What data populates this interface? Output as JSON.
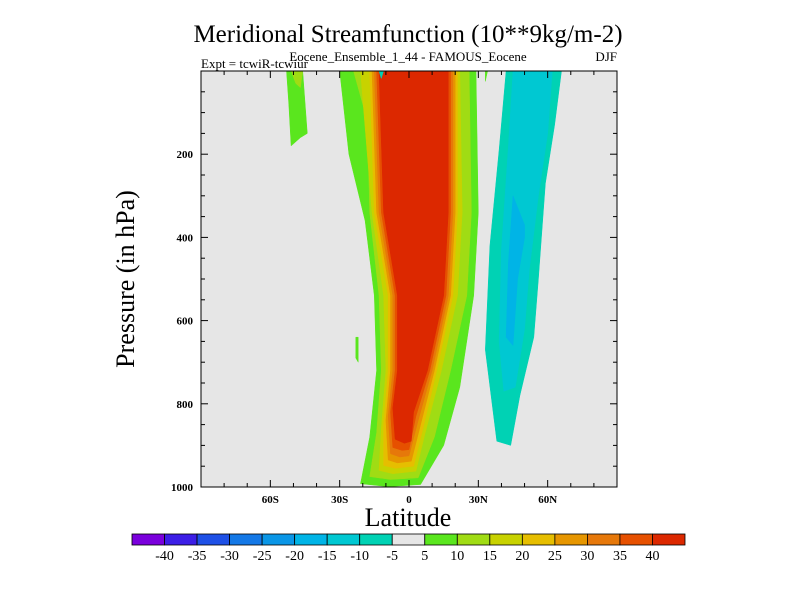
{
  "title": "Meridional Streamfunction (10**9kg/m-2)",
  "subtitle": "Eocene_Ensemble_1_44 - FAMOUS_Eocene",
  "expt_label": "Expt = tcwiR-tcwiur",
  "season": "DJF",
  "chart_data": {
    "type": "heatmap",
    "title": "Meridional Streamfunction (10**9kg/m-2)",
    "subtitle": "Eocene_Ensemble_1_44 - FAMOUS_Eocene",
    "season": "DJF",
    "xlabel": "Latitude",
    "ylabel": "Pressure (in hPa)",
    "xlim": [
      -90,
      90
    ],
    "ylim": [
      1000,
      0
    ],
    "x_ticks": [
      {
        "value": -60,
        "label": "60S"
      },
      {
        "value": -30,
        "label": "30S"
      },
      {
        "value": 0,
        "label": "0"
      },
      {
        "value": 30,
        "label": "30N"
      },
      {
        "value": 60,
        "label": "60N"
      }
    ],
    "y_ticks": [
      {
        "value": 200,
        "label": "200"
      },
      {
        "value": 400,
        "label": "400"
      },
      {
        "value": 600,
        "label": "600"
      },
      {
        "value": 800,
        "label": "800"
      },
      {
        "value": 1000,
        "label": "1000"
      }
    ],
    "background_color": "#e6e6e6",
    "contour_levels": [
      -40,
      -35,
      -30,
      -25,
      -20,
      -15,
      -10,
      -5,
      5,
      10,
      15,
      20,
      25,
      30,
      35,
      40
    ],
    "colorbar_labels": [
      "-40",
      "-35",
      "-30",
      "-25",
      "-20",
      "-15",
      "-10",
      "-5",
      "5",
      "10",
      "15",
      "20",
      "25",
      "30",
      "35",
      "40"
    ],
    "colorbar_colors": [
      "#7a00dc",
      "#3c1ee6",
      "#1e50e6",
      "#1478e6",
      "#0a96e6",
      "#00b4e6",
      "#00c8d2",
      "#00d2b4",
      "#e6e6e6",
      "#5ae61e",
      "#a0dc14",
      "#c8d200",
      "#e6be00",
      "#e69600",
      "#e6780a",
      "#e65000",
      "#dc2800"
    ],
    "regions": [
      {
        "level": "5",
        "color": "#5ae61e",
        "points": [
          [
            -21,
            992
          ],
          [
            -9,
            999
          ],
          [
            5,
            994
          ],
          [
            15,
            900
          ],
          [
            22,
            760
          ],
          [
            28,
            540
          ],
          [
            30,
            340
          ],
          [
            29,
            0
          ],
          [
            -25,
            0
          ],
          [
            -30,
            0
          ],
          [
            -26,
            200
          ],
          [
            -19,
            360
          ],
          [
            -15,
            540
          ],
          [
            -14,
            720
          ],
          [
            -17,
            880
          ]
        ]
      },
      {
        "level": "5",
        "color": "#5ae61e",
        "points": [
          [
            -53,
            0
          ],
          [
            -46,
            0
          ],
          [
            -44,
            150
          ],
          [
            -47,
            160
          ],
          [
            -51,
            180
          ],
          [
            -52,
            80
          ]
        ]
      },
      {
        "level": "10",
        "color": "#a0dc14",
        "points": [
          [
            -17,
            975
          ],
          [
            -8,
            982
          ],
          [
            4,
            978
          ],
          [
            11,
            880
          ],
          [
            18,
            720
          ],
          [
            25,
            540
          ],
          [
            27,
            340
          ],
          [
            26,
            0
          ],
          [
            -22,
            0
          ],
          [
            -24,
            0
          ],
          [
            -18,
            120
          ],
          [
            -17,
            340
          ],
          [
            -13,
            540
          ],
          [
            -12,
            720
          ],
          [
            -14,
            870
          ]
        ]
      },
      {
        "level": "10",
        "color": "#a0dc14",
        "points": [
          [
            -51,
            0
          ],
          [
            -46,
            0
          ],
          [
            -47,
            40
          ],
          [
            -49,
            30
          ]
        ]
      },
      {
        "level": "15",
        "color": "#c8d200",
        "points": [
          [
            -13,
            960
          ],
          [
            -7,
            968
          ],
          [
            3,
            962
          ],
          [
            7,
            870
          ],
          [
            14,
            720
          ],
          [
            21,
            540
          ],
          [
            23,
            340
          ],
          [
            22,
            0
          ],
          [
            -19,
            0
          ],
          [
            -21,
            0
          ],
          [
            -16,
            340
          ],
          [
            -11,
            540
          ],
          [
            -10,
            720
          ],
          [
            -12,
            860
          ]
        ]
      },
      {
        "level": "20",
        "color": "#e6be00",
        "points": [
          [
            -11,
            948
          ],
          [
            -6,
            955
          ],
          [
            2,
            950
          ],
          [
            6,
            860
          ],
          [
            12,
            720
          ],
          [
            19,
            540
          ],
          [
            21,
            340
          ],
          [
            21,
            0
          ],
          [
            -17,
            0
          ],
          [
            -15,
            340
          ],
          [
            -9,
            540
          ],
          [
            -9,
            720
          ],
          [
            -11,
            850
          ]
        ]
      },
      {
        "level": "25",
        "color": "#e69600",
        "points": [
          [
            -9,
            935
          ],
          [
            -5,
            942
          ],
          [
            1,
            938
          ],
          [
            5,
            850
          ],
          [
            11,
            720
          ],
          [
            18,
            540
          ],
          [
            20,
            340
          ],
          [
            20,
            0
          ],
          [
            -16,
            0
          ],
          [
            -14,
            340
          ],
          [
            -8,
            540
          ],
          [
            -8,
            720
          ],
          [
            -10,
            840
          ]
        ]
      },
      {
        "level": "30",
        "color": "#e6780a",
        "points": [
          [
            -8,
            920
          ],
          [
            -4,
            928
          ],
          [
            0,
            925
          ],
          [
            4,
            840
          ],
          [
            10,
            720
          ],
          [
            17,
            540
          ],
          [
            19,
            340
          ],
          [
            19,
            0
          ],
          [
            -15,
            0
          ],
          [
            -13,
            340
          ],
          [
            -7,
            540
          ],
          [
            -7,
            720
          ],
          [
            -9,
            830
          ]
        ]
      },
      {
        "level": "35",
        "color": "#e65000",
        "points": [
          [
            -7,
            905
          ],
          [
            -3,
            912
          ],
          [
            0,
            910
          ],
          [
            3,
            830
          ],
          [
            9,
            720
          ],
          [
            16,
            540
          ],
          [
            18,
            340
          ],
          [
            18,
            0
          ],
          [
            -14,
            0
          ],
          [
            -12,
            340
          ],
          [
            -6,
            540
          ],
          [
            -6,
            720
          ],
          [
            -8,
            820
          ]
        ]
      },
      {
        "level": "40",
        "color": "#dc2800",
        "points": [
          [
            -6,
            885
          ],
          [
            -2,
            895
          ],
          [
            1,
            890
          ],
          [
            2,
            820
          ],
          [
            8,
            720
          ],
          [
            15,
            540
          ],
          [
            17,
            340
          ],
          [
            17,
            0
          ],
          [
            -13,
            0
          ],
          [
            -11,
            340
          ],
          [
            -5,
            540
          ],
          [
            -5,
            720
          ],
          [
            -7,
            810
          ]
        ]
      },
      {
        "level": "-5",
        "color": "#00d2b4",
        "points": [
          [
            38,
            890
          ],
          [
            44,
            900
          ],
          [
            48,
            780
          ],
          [
            54,
            640
          ],
          [
            56,
            500
          ],
          [
            59,
            270
          ],
          [
            63,
            130
          ],
          [
            66,
            0
          ],
          [
            42,
            0
          ],
          [
            39,
            190
          ],
          [
            35,
            420
          ],
          [
            33,
            670
          ]
        ]
      },
      {
        "level": "-10",
        "color": "#00c8d2",
        "points": [
          [
            41,
            770
          ],
          [
            46,
            760
          ],
          [
            50,
            620
          ],
          [
            52,
            480
          ],
          [
            56,
            300
          ],
          [
            60,
            150
          ],
          [
            62,
            0
          ],
          [
            45,
            0
          ],
          [
            43,
            180
          ],
          [
            40,
            430
          ],
          [
            39,
            650
          ]
        ]
      },
      {
        "level": "-15",
        "color": "#00b4e6",
        "points": [
          [
            42,
            640
          ],
          [
            45,
            660
          ],
          [
            47,
            500
          ],
          [
            50,
            400
          ],
          [
            50,
            370
          ],
          [
            45,
            300
          ],
          [
            43,
            460
          ]
        ]
      },
      {
        "level": "-5",
        "color": "#00d2b4",
        "points": [
          [
            -13,
            0
          ],
          [
            -11,
            0
          ],
          [
            -12,
            18
          ]
        ]
      },
      {
        "level": "5",
        "color": "#5ae61e",
        "points": [
          [
            33,
            0
          ],
          [
            34,
            0
          ],
          [
            33,
            25
          ]
        ]
      },
      {
        "level": "5",
        "color": "#5ae61e",
        "points": [
          [
            -23,
            640
          ],
          [
            -22,
            640
          ],
          [
            -22,
            700
          ],
          [
            -23,
            690
          ]
        ]
      }
    ]
  }
}
